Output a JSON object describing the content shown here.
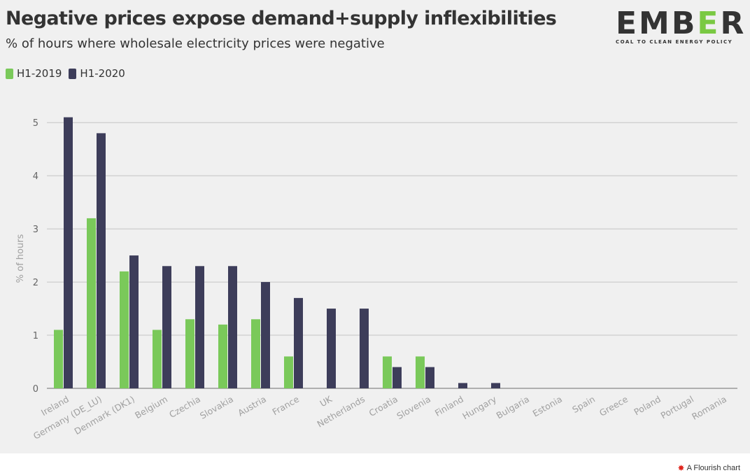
{
  "header": {
    "title": "Negative prices expose demand+supply inflexibilities",
    "subtitle": "% of hours where wholesale electricity prices were negative"
  },
  "logo": {
    "word_start": "EMB",
    "word_accent": "E",
    "word_end": "R",
    "tagline": "COAL TO CLEAN ENERGY POLICY"
  },
  "legend": [
    {
      "label": "H1-2019",
      "color": "#7ac95a"
    },
    {
      "label": "H1-2020",
      "color": "#3d3d5a"
    }
  ],
  "footer": {
    "icon": "flourish-icon",
    "label": "A Flourish chart"
  },
  "chart_data": {
    "type": "bar",
    "ylabel": "% of hours",
    "ylim": [
      0,
      5.2
    ],
    "yticks": [
      0,
      1,
      2,
      3,
      4,
      5
    ],
    "grid": true,
    "legend_position": "top-left",
    "categories": [
      "Ireland",
      "Germany (DE_LU)",
      "Denmark (DK1)",
      "Belgium",
      "Czechia",
      "Slovakia",
      "Austria",
      "France",
      "UK",
      "Netherlands",
      "Croatia",
      "Slovenia",
      "Finland",
      "Hungary",
      "Bulgaria",
      "Estonia",
      "Spain",
      "Greece",
      "Poland",
      "Portugal",
      "Romania"
    ],
    "series": [
      {
        "name": "H1-2019",
        "color": "#7ac95a",
        "values": [
          1.1,
          3.2,
          2.2,
          1.1,
          1.3,
          1.2,
          1.3,
          0.6,
          0,
          0,
          0.6,
          0.6,
          0,
          0,
          0,
          0,
          0,
          0,
          0,
          0,
          0
        ]
      },
      {
        "name": "H1-2020",
        "color": "#3d3d5a",
        "values": [
          5.1,
          4.8,
          2.5,
          2.3,
          2.3,
          2.3,
          2.0,
          1.7,
          1.5,
          1.5,
          0.4,
          0.4,
          0.1,
          0.1,
          0,
          0,
          0,
          0,
          0,
          0,
          0
        ]
      }
    ]
  }
}
